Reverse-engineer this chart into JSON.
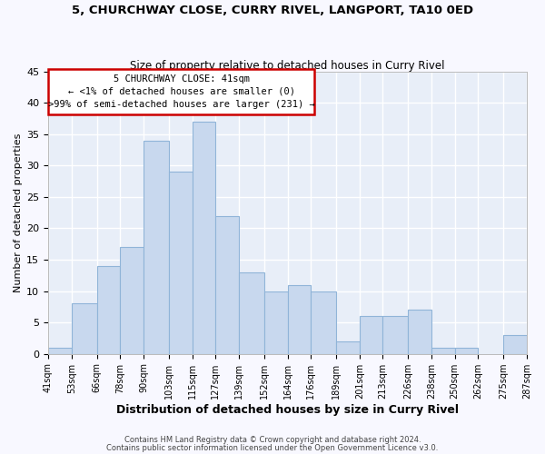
{
  "title1": "5, CHURCHWAY CLOSE, CURRY RIVEL, LANGPORT, TA10 0ED",
  "title2": "Size of property relative to detached houses in Curry Rivel",
  "xlabel": "Distribution of detached houses by size in Curry Rivel",
  "ylabel": "Number of detached properties",
  "bar_color": "#c8d8ee",
  "bar_edge_color": "#90b4d8",
  "bins": [
    41,
    53,
    66,
    78,
    90,
    103,
    115,
    127,
    139,
    152,
    164,
    176,
    189,
    201,
    213,
    226,
    238,
    250,
    262,
    275,
    287
  ],
  "counts": [
    1,
    8,
    14,
    17,
    34,
    29,
    37,
    22,
    13,
    10,
    11,
    10,
    2,
    6,
    6,
    7,
    1,
    1,
    0,
    3
  ],
  "tick_labels": [
    "41sqm",
    "53sqm",
    "66sqm",
    "78sqm",
    "90sqm",
    "103sqm",
    "115sqm",
    "127sqm",
    "139sqm",
    "152sqm",
    "164sqm",
    "176sqm",
    "189sqm",
    "201sqm",
    "213sqm",
    "226sqm",
    "238sqm",
    "250sqm",
    "262sqm",
    "275sqm",
    "287sqm"
  ],
  "ylim": [
    0,
    45
  ],
  "yticks": [
    0,
    5,
    10,
    15,
    20,
    25,
    30,
    35,
    40,
    45
  ],
  "annotation_line1": "5 CHURCHWAY CLOSE: 41sqm",
  "annotation_line2": "← <1% of detached houses are smaller (0)",
  "annotation_line3": ">99% of semi-detached houses are larger (231) →",
  "annotation_box_color": "white",
  "annotation_box_edge_color": "#cc0000",
  "footer1": "Contains HM Land Registry data © Crown copyright and database right 2024.",
  "footer2": "Contains public sector information licensed under the Open Government Licence v3.0.",
  "background_color": "#f8f8ff",
  "plot_bg_color": "#e8eef8",
  "grid_color": "white"
}
